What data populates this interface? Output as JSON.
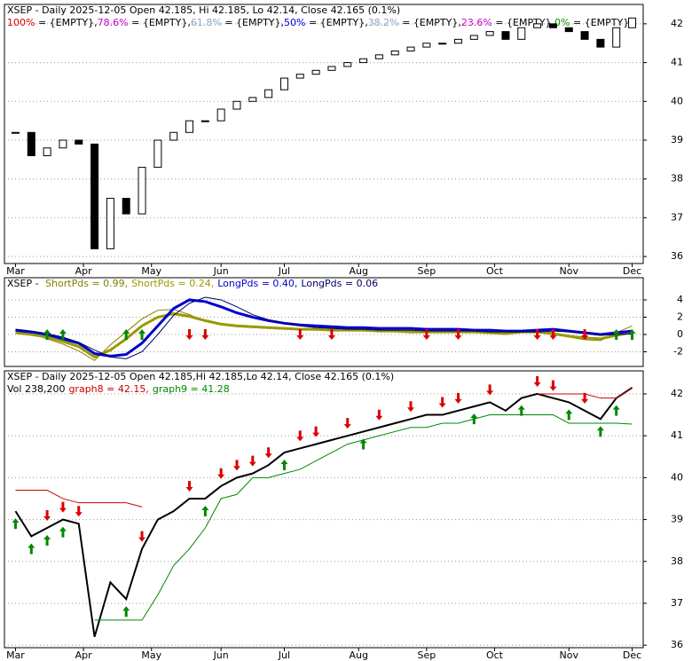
{
  "chart_data": [
    {
      "type": "candlestick",
      "title": "XSEP - Daily 2025-12-05 Open 42.185, Hi 42.185, Lo 42.14, Close 42.165 (0.1%)",
      "fib_legend": [
        {
          "label": "100%",
          "text": " = {EMPTY},",
          "color": "#e00000"
        },
        {
          "label": "78.6%",
          "text": " = {EMPTY},",
          "color": "#cc00cc"
        },
        {
          "label": "61.8%",
          "text": " = {EMPTY},",
          "color": "#8aa8c8"
        },
        {
          "label": "50%",
          "text": " = {EMPTY},",
          "color": "#0000dd"
        },
        {
          "label": "38.2%",
          "text": " = {EMPTY},",
          "color": "#8aa8c8"
        },
        {
          "label": "23.6%",
          "text": " = {EMPTY},",
          "color": "#cc00cc"
        },
        {
          "label": "0%",
          "text": " = {EMPTY}",
          "color": "#009900"
        }
      ],
      "x": [
        0,
        1,
        2,
        3,
        4,
        5,
        6,
        7,
        8,
        9,
        10,
        11,
        12,
        13,
        14,
        15,
        16,
        17,
        18,
        19,
        20,
        21,
        22,
        23,
        24,
        25,
        26,
        27,
        28,
        29,
        30,
        31,
        32,
        33,
        34,
        35,
        36,
        37,
        38,
        39
      ],
      "values": [
        39.2,
        38.6,
        38.8,
        39.0,
        38.9,
        36.2,
        37.5,
        37.1,
        38.3,
        39.0,
        39.2,
        39.5,
        39.5,
        39.8,
        40.0,
        40.1,
        40.3,
        40.6,
        40.7,
        40.8,
        40.9,
        41.0,
        41.1,
        41.2,
        41.3,
        41.4,
        41.5,
        41.5,
        41.6,
        41.7,
        41.8,
        41.6,
        41.9,
        42.0,
        41.9,
        41.8,
        41.6,
        41.4,
        41.9,
        42.15
      ],
      "xlim": [
        -0.7,
        39.7
      ],
      "xticks": [
        {
          "value": 0,
          "label": "Mar"
        },
        {
          "value": 4.3,
          "label": "Apr"
        },
        {
          "value": 8.6,
          "label": "May"
        },
        {
          "value": 13,
          "label": "Jun"
        },
        {
          "value": 17,
          "label": "Jul"
        },
        {
          "value": 21.7,
          "label": "Aug"
        },
        {
          "value": 26,
          "label": "Sep"
        },
        {
          "value": 30.3,
          "label": "Oct"
        },
        {
          "value": 35,
          "label": "Nov"
        },
        {
          "value": 39,
          "label": "Dec"
        }
      ],
      "ylim": [
        35.82,
        42.5
      ],
      "yticks": [
        36,
        37,
        38,
        39,
        40,
        41,
        42
      ],
      "grid": true
    },
    {
      "type": "line",
      "title": "XSEP - ",
      "x": [
        0,
        1,
        2,
        3,
        4,
        5,
        6,
        7,
        8,
        9,
        10,
        11,
        12,
        13,
        14,
        15,
        16,
        17,
        18,
        19,
        20,
        21,
        22,
        23,
        24,
        25,
        26,
        27,
        28,
        29,
        30,
        31,
        32,
        33,
        34,
        35,
        36,
        37,
        38,
        39
      ],
      "series": [
        {
          "legend": "ShortPds = 0.99,",
          "color": "#808000",
          "width": 1,
          "values": [
            0.4,
            0.1,
            -0.5,
            -1.1,
            -1.9,
            -3.0,
            -1.2,
            0.3,
            1.8,
            2.8,
            2.9,
            2.3,
            1.5,
            1.1,
            0.9,
            0.8,
            0.7,
            0.6,
            0.6,
            0.5,
            0.5,
            0.5,
            0.4,
            0.4,
            0.4,
            0.3,
            0.3,
            0.3,
            0.3,
            0.2,
            0.2,
            0.0,
            0.4,
            0.4,
            0.0,
            -0.3,
            -0.6,
            -0.7,
            0.2,
            0.99
          ]
        },
        {
          "legend": "ShortPds = 0.24,",
          "color": "#999900",
          "width": 3,
          "values": [
            0.2,
            0.0,
            -0.3,
            -0.8,
            -1.4,
            -2.6,
            -1.8,
            -0.5,
            1.0,
            2.0,
            2.4,
            2.1,
            1.6,
            1.2,
            1.0,
            0.9,
            0.8,
            0.7,
            0.6,
            0.6,
            0.5,
            0.5,
            0.5,
            0.4,
            0.4,
            0.3,
            0.3,
            0.3,
            0.3,
            0.3,
            0.2,
            0.1,
            0.3,
            0.3,
            0.1,
            -0.2,
            -0.4,
            -0.5,
            -0.1,
            0.24
          ]
        },
        {
          "legend": "LongPds = 0.40,",
          "color": "#0000cc",
          "width": 3,
          "values": [
            0.5,
            0.3,
            0.0,
            -0.5,
            -1.0,
            -2.2,
            -2.5,
            -2.3,
            -1.0,
            1.0,
            3.0,
            4.0,
            3.8,
            3.2,
            2.5,
            2.0,
            1.6,
            1.3,
            1.1,
            1.0,
            0.9,
            0.8,
            0.8,
            0.7,
            0.7,
            0.7,
            0.6,
            0.6,
            0.6,
            0.5,
            0.5,
            0.4,
            0.4,
            0.5,
            0.6,
            0.4,
            0.2,
            0.0,
            0.2,
            0.4
          ]
        },
        {
          "legend": "LongPds = 0.06",
          "color": "#000066",
          "width": 1,
          "values": [
            0.6,
            0.4,
            0.1,
            -0.3,
            -0.9,
            -1.8,
            -2.6,
            -2.8,
            -2.0,
            0.0,
            2.2,
            3.6,
            4.3,
            4.0,
            3.2,
            2.3,
            1.7,
            1.3,
            1.0,
            0.8,
            0.7,
            0.6,
            0.6,
            0.5,
            0.5,
            0.5,
            0.4,
            0.4,
            0.4,
            0.4,
            0.3,
            0.3,
            0.3,
            0.3,
            0.4,
            0.3,
            0.1,
            -0.1,
            0.0,
            0.06
          ]
        }
      ],
      "sell_signals": [
        11,
        12,
        18,
        20,
        26,
        28,
        33,
        34,
        36
      ],
      "buy_signals": [
        2,
        3,
        7,
        8,
        38,
        39
      ],
      "xlim": [
        -0.7,
        39.7
      ],
      "ylim": [
        -3.69,
        6.56
      ],
      "yticks": [
        -2,
        0,
        2,
        4
      ],
      "grid": true
    },
    {
      "type": "line",
      "title": "XSEP - Daily 2025-12-05 Open 42.185,Hi 42.185,Lo 42.14, Close 42.165 (0.1%)",
      "volume_label": "Vol 238,200",
      "x": [
        0,
        1,
        2,
        3,
        4,
        5,
        6,
        7,
        8,
        9,
        10,
        11,
        12,
        13,
        14,
        15,
        16,
        17,
        18,
        19,
        20,
        21,
        22,
        23,
        24,
        25,
        26,
        27,
        28,
        29,
        30,
        31,
        32,
        33,
        34,
        35,
        36,
        37,
        38,
        39
      ],
      "series": [
        {
          "legend": "",
          "color": "#000000",
          "width": 2,
          "values": [
            39.2,
            38.6,
            38.8,
            39.0,
            38.9,
            36.2,
            37.5,
            37.1,
            38.3,
            39.0,
            39.2,
            39.5,
            39.5,
            39.8,
            40.0,
            40.1,
            40.3,
            40.6,
            40.7,
            40.8,
            40.9,
            41.0,
            41.1,
            41.2,
            41.3,
            41.4,
            41.5,
            41.5,
            41.6,
            41.7,
            41.8,
            41.6,
            41.9,
            42.0,
            41.9,
            41.8,
            41.6,
            41.4,
            41.9,
            42.15
          ]
        },
        {
          "legend": "graph8 = 42.15,",
          "color": "#cc0000",
          "width": 1,
          "values": [
            39.7,
            39.7,
            39.7,
            39.5,
            39.4,
            39.4,
            39.4,
            39.4,
            39.3,
            null,
            null,
            null,
            null,
            null,
            null,
            null,
            null,
            null,
            null,
            null,
            null,
            null,
            null,
            null,
            null,
            null,
            null,
            null,
            null,
            null,
            null,
            null,
            null,
            42.0,
            42.0,
            42.0,
            42.0,
            41.9,
            41.9,
            42.15
          ]
        },
        {
          "legend": "graph9 = 41.28",
          "color": "#008800",
          "width": 1,
          "values": [
            null,
            null,
            null,
            null,
            null,
            36.6,
            36.6,
            36.6,
            36.6,
            37.2,
            37.9,
            38.3,
            38.8,
            39.5,
            39.6,
            40.0,
            40.0,
            40.1,
            40.2,
            40.4,
            40.6,
            40.8,
            40.9,
            41.0,
            41.1,
            41.2,
            41.2,
            41.3,
            41.3,
            41.4,
            41.5,
            41.5,
            41.5,
            41.5,
            41.5,
            41.3,
            41.3,
            41.3,
            41.3,
            41.28
          ]
        }
      ],
      "sell_signals": [
        2,
        3,
        4,
        8,
        11,
        13,
        14,
        15,
        16,
        18,
        19,
        21,
        23,
        25,
        27,
        28,
        30,
        33,
        34,
        36
      ],
      "buy_signals": [
        0,
        1,
        2,
        3,
        7,
        12,
        17,
        22,
        29,
        32,
        35,
        37,
        38
      ],
      "xlim": [
        -0.7,
        39.7
      ],
      "xticks": [
        {
          "value": 0,
          "label": "Mar"
        },
        {
          "value": 4.3,
          "label": "Apr"
        },
        {
          "value": 8.6,
          "label": "May"
        },
        {
          "value": 13,
          "label": "Jun"
        },
        {
          "value": 17,
          "label": "Jul"
        },
        {
          "value": 21.7,
          "label": "Aug"
        },
        {
          "value": 26,
          "label": "Sep"
        },
        {
          "value": 30.3,
          "label": "Oct"
        },
        {
          "value": 35,
          "label": "Nov"
        },
        {
          "value": 39,
          "label": "Dec"
        }
      ],
      "ylim": [
        35.94,
        42.55
      ],
      "yticks": [
        36,
        37,
        38,
        39,
        40,
        41,
        42
      ],
      "grid": true
    }
  ]
}
